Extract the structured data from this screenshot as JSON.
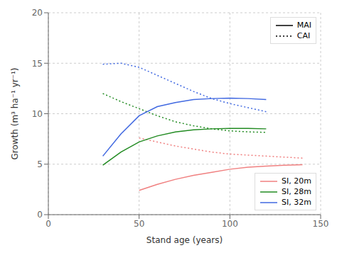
{
  "chart_data": {
    "type": "line",
    "xlabel": "Stand age (years)",
    "ylabel": "Growth (m³ ha⁻¹ yr⁻¹)",
    "xlim": [
      0,
      150
    ],
    "ylim": [
      0,
      20
    ],
    "xticks": [
      0,
      50,
      100,
      150
    ],
    "yticks": [
      0,
      5,
      10,
      15,
      20
    ],
    "grid": true,
    "series": [
      {
        "color": "#F08080",
        "line_style": "solid",
        "x": [
          50,
          60,
          70,
          80,
          90,
          100,
          110,
          120,
          130,
          140
        ],
        "values": [
          2.4,
          3.0,
          3.5,
          3.9,
          4.2,
          4.5,
          4.7,
          4.8,
          4.9,
          4.95
        ]
      },
      {
        "color": "#F08080",
        "line_style": "dotted",
        "x": [
          50,
          60,
          70,
          80,
          90,
          100,
          110,
          120,
          130,
          140
        ],
        "values": [
          7.6,
          7.2,
          6.8,
          6.5,
          6.2,
          6.0,
          5.9,
          5.8,
          5.7,
          5.6
        ]
      },
      {
        "color": "#228B22",
        "line_style": "solid",
        "x": [
          30,
          40,
          50,
          60,
          70,
          80,
          90,
          100,
          110,
          120
        ],
        "values": [
          4.9,
          6.2,
          7.2,
          7.8,
          8.2,
          8.4,
          8.5,
          8.55,
          8.55,
          8.5
        ]
      },
      {
        "color": "#228B22",
        "line_style": "dotted",
        "x": [
          30,
          40,
          50,
          60,
          70,
          80,
          90,
          100,
          110,
          120
        ],
        "values": [
          12.0,
          11.2,
          10.5,
          9.8,
          9.2,
          8.8,
          8.5,
          8.3,
          8.2,
          8.15
        ]
      },
      {
        "color": "#4169E1",
        "line_style": "solid",
        "x": [
          30,
          40,
          50,
          60,
          70,
          80,
          90,
          100,
          110,
          120
        ],
        "values": [
          5.8,
          8.0,
          9.8,
          10.7,
          11.1,
          11.4,
          11.5,
          11.55,
          11.5,
          11.4
        ]
      },
      {
        "color": "#4169E1",
        "line_style": "dotted",
        "x": [
          30,
          40,
          50,
          60,
          70,
          80,
          90,
          100,
          110,
          120
        ],
        "values": [
          14.9,
          15.0,
          14.6,
          13.8,
          13.0,
          12.2,
          11.5,
          11.0,
          10.6,
          10.2
        ]
      }
    ],
    "legends": [
      {
        "legend": "upper right",
        "entries": [
          {
            "name": "MAI",
            "line_style": "solid",
            "color": "black"
          },
          {
            "name": "CAI",
            "line_style": "dotted",
            "color": "black"
          }
        ]
      },
      {
        "legend": "lower right",
        "entries": [
          {
            "name": "SI, 20m",
            "line_style": "solid",
            "color": "#F08080"
          },
          {
            "name": "SI, 28m",
            "line_style": "solid",
            "color": "#228B22"
          },
          {
            "name": "SI, 32m",
            "line_style": "solid",
            "color": "#4169E1"
          }
        ]
      }
    ]
  }
}
